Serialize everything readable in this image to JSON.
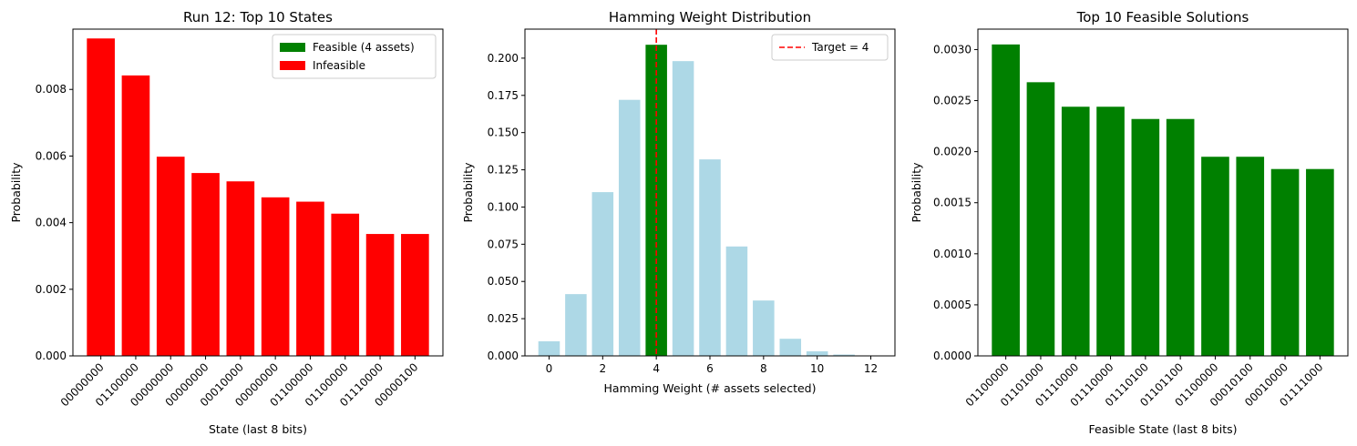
{
  "figure": {
    "background": "#ffffff"
  },
  "chart_data": [
    {
      "type": "bar",
      "title": "Run 12: Top 10 States",
      "xlabel": "State (last 8 bits)",
      "ylabel": "Probability",
      "categories": [
        "00000000",
        "01100000",
        "00000000",
        "00000000",
        "00010000",
        "00000000",
        "01100000",
        "01100000",
        "01110000",
        "00000100"
      ],
      "values": [
        0.00953,
        0.00842,
        0.00598,
        0.00549,
        0.00524,
        0.00476,
        0.00463,
        0.00427,
        0.00366,
        0.00366
      ],
      "bar_colors": [
        "#ff0000",
        "#ff0000",
        "#ff0000",
        "#ff0000",
        "#ff0000",
        "#ff0000",
        "#ff0000",
        "#ff0000",
        "#ff0000",
        "#ff0000"
      ],
      "ylim": [
        0,
        0.00981
      ],
      "yticks": [
        "0.000",
        "0.002",
        "0.004",
        "0.006",
        "0.008"
      ],
      "ytick_values": [
        0,
        0.002,
        0.004,
        0.006,
        0.008
      ],
      "xtick_rotation": 45,
      "grid": false,
      "legend": {
        "placement": "top-right",
        "entries": [
          {
            "label": "Feasible (4 assets)",
            "color": "#008000"
          },
          {
            "label": "Infeasible",
            "color": "#ff0000"
          }
        ]
      }
    },
    {
      "type": "bar",
      "title": "Hamming Weight Distribution",
      "xlabel": "Hamming Weight (# assets selected)",
      "ylabel": "Probability",
      "x": [
        0,
        1,
        2,
        3,
        4,
        5,
        6,
        7,
        8,
        9,
        10,
        11,
        12
      ],
      "values": [
        0.0098,
        0.0415,
        0.11,
        0.172,
        0.209,
        0.198,
        0.132,
        0.0735,
        0.0372,
        0.0115,
        0.0031,
        0.0009,
        0.0001
      ],
      "bar_colors": [
        "#add8e6",
        "#add8e6",
        "#add8e6",
        "#add8e6",
        "#008000",
        "#add8e6",
        "#add8e6",
        "#add8e6",
        "#add8e6",
        "#add8e6",
        "#add8e6",
        "#add8e6",
        "#add8e6"
      ],
      "xlim": [
        -0.9,
        12.9
      ],
      "ylim": [
        0,
        0.2195
      ],
      "xticks": [
        "0",
        "2",
        "4",
        "6",
        "8",
        "10",
        "12"
      ],
      "xtick_values": [
        0,
        2,
        4,
        6,
        8,
        10,
        12
      ],
      "yticks": [
        "0.000",
        "0.025",
        "0.050",
        "0.075",
        "0.100",
        "0.125",
        "0.150",
        "0.175",
        "0.200"
      ],
      "ytick_values": [
        0,
        0.025,
        0.05,
        0.075,
        0.1,
        0.125,
        0.15,
        0.175,
        0.2
      ],
      "reference_line": {
        "x": 4,
        "label": "Target = 4",
        "color": "#ff0000",
        "style": "dashed"
      },
      "grid": false,
      "legend": {
        "placement": "top-right",
        "entries": [
          {
            "label": "Target = 4",
            "color": "#ff0000",
            "style": "dashed"
          }
        ]
      }
    },
    {
      "type": "bar",
      "title": "Top 10 Feasible Solutions",
      "xlabel": "Feasible State (last 8 bits)",
      "ylabel": "Probability",
      "categories": [
        "01100000",
        "01101000",
        "01110000",
        "01110000",
        "01110100",
        "01101100",
        "01100000",
        "00010100",
        "00010000",
        "01111000"
      ],
      "values": [
        0.00305,
        0.00268,
        0.00244,
        0.00244,
        0.00232,
        0.00232,
        0.00195,
        0.00195,
        0.00183,
        0.00183
      ],
      "bar_colors": [
        "#008000",
        "#008000",
        "#008000",
        "#008000",
        "#008000",
        "#008000",
        "#008000",
        "#008000",
        "#008000",
        "#008000"
      ],
      "ylim": [
        0,
        0.0032
      ],
      "yticks": [
        "0.0000",
        "0.0005",
        "0.0010",
        "0.0015",
        "0.0020",
        "0.0025",
        "0.0030"
      ],
      "ytick_values": [
        0,
        0.0005,
        0.001,
        0.0015,
        0.002,
        0.0025,
        0.003
      ],
      "xtick_rotation": 45,
      "grid": false
    }
  ]
}
